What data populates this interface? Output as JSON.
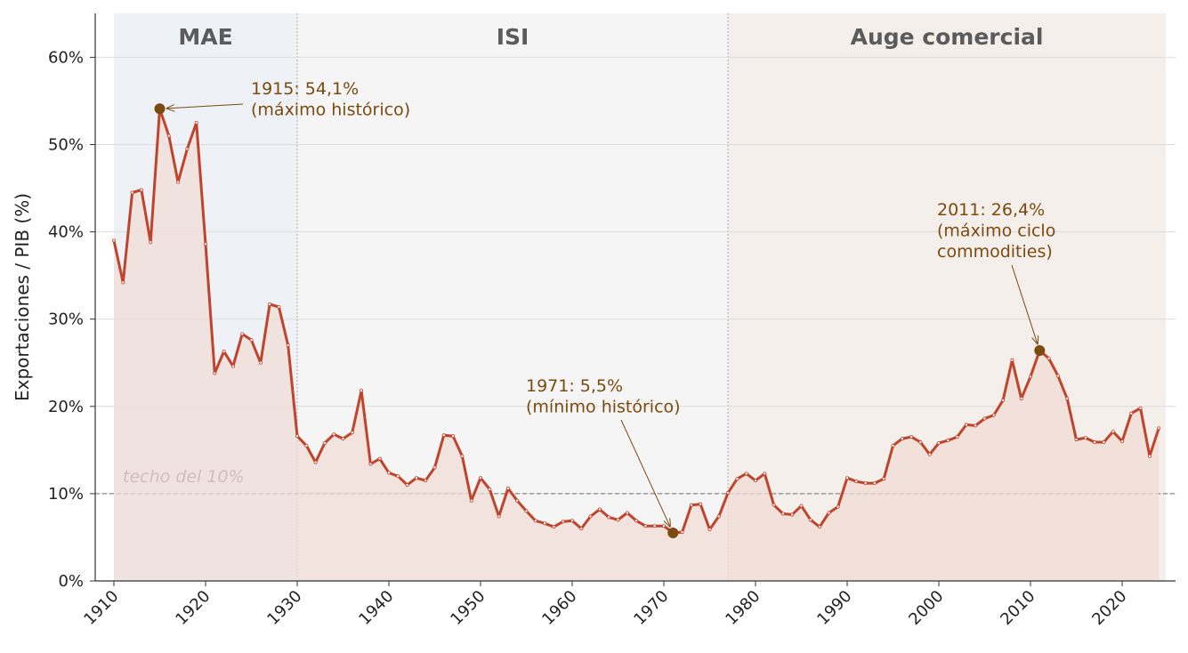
{
  "chart_data": {
    "type": "line",
    "title": "",
    "xlabel": "",
    "ylabel": "Exportaciones / PIB (%)",
    "xlim": [
      1908,
      2027
    ],
    "ylim": [
      0,
      65
    ],
    "grid": "horizontal",
    "x_ticks": [
      1910,
      1920,
      1930,
      1940,
      1950,
      1960,
      1970,
      1980,
      1990,
      2000,
      2010,
      2020
    ],
    "y_ticks": [
      {
        "value": 0,
        "label": "0%"
      },
      {
        "value": 10,
        "label": "10%"
      },
      {
        "value": 20,
        "label": "20%"
      },
      {
        "value": 30,
        "label": "30%"
      },
      {
        "value": 40,
        "label": "40%"
      },
      {
        "value": 50,
        "label": "50%"
      },
      {
        "value": 60,
        "label": "60%"
      }
    ],
    "periods": [
      {
        "name": "MAE",
        "start": 1910,
        "end": 1930,
        "color": "#eef2f7"
      },
      {
        "name": "ISI",
        "start": 1930,
        "end": 1977,
        "color": "#f5f5f5"
      },
      {
        "name": "Auge comercial",
        "start": 1977,
        "end": 2025,
        "color": "#f5efeb"
      }
    ],
    "reference_line": {
      "value": 10,
      "label": "techo del 10%"
    },
    "series": [
      {
        "color": "#c0442c",
        "fill": "#f0dcd5",
        "x": [
          1910,
          1911,
          1912,
          1913,
          1914,
          1915,
          1916,
          1917,
          1918,
          1919,
          1920,
          1921,
          1922,
          1923,
          1924,
          1925,
          1926,
          1927,
          1928,
          1929,
          1930,
          1931,
          1932,
          1933,
          1934,
          1935,
          1936,
          1937,
          1938,
          1939,
          1940,
          1941,
          1942,
          1943,
          1944,
          1945,
          1946,
          1947,
          1948,
          1949,
          1950,
          1951,
          1952,
          1953,
          1954,
          1955,
          1956,
          1957,
          1958,
          1959,
          1960,
          1961,
          1962,
          1963,
          1964,
          1965,
          1966,
          1967,
          1968,
          1969,
          1970,
          1971,
          1972,
          1973,
          1974,
          1975,
          1976,
          1977,
          1978,
          1979,
          1980,
          1981,
          1982,
          1983,
          1984,
          1985,
          1986,
          1987,
          1988,
          1989,
          1990,
          1991,
          1992,
          1993,
          1994,
          1995,
          1996,
          1997,
          1998,
          1999,
          2000,
          2001,
          2002,
          2003,
          2004,
          2005,
          2006,
          2007,
          2008,
          2009,
          2010,
          2011,
          2012,
          2013,
          2014,
          2015,
          2016,
          2017,
          2018,
          2019,
          2020,
          2021,
          2022,
          2023,
          2024
        ],
        "values": [
          39.0,
          34.2,
          44.5,
          44.8,
          38.8,
          54.1,
          51.0,
          45.7,
          49.5,
          52.5,
          38.6,
          23.8,
          26.3,
          24.6,
          28.3,
          27.6,
          25.0,
          31.7,
          31.4,
          27.0,
          16.6,
          15.5,
          13.6,
          15.8,
          16.8,
          16.3,
          17.0,
          21.8,
          13.4,
          14.0,
          12.4,
          12.0,
          11.0,
          11.8,
          11.5,
          13.0,
          16.7,
          16.6,
          14.3,
          9.2,
          11.8,
          10.5,
          7.4,
          10.6,
          9.2,
          8.0,
          6.9,
          6.6,
          6.2,
          6.8,
          6.9,
          6.0,
          7.4,
          8.2,
          7.3,
          7.0,
          7.8,
          6.9,
          6.3,
          6.3,
          6.3,
          5.5,
          5.6,
          8.7,
          8.8,
          5.9,
          7.4,
          10.1,
          11.7,
          12.3,
          11.5,
          12.3,
          8.7,
          7.7,
          7.6,
          8.6,
          7.0,
          6.2,
          7.8,
          8.5,
          11.8,
          11.4,
          11.2,
          11.2,
          11.7,
          15.5,
          16.3,
          16.5,
          15.9,
          14.5,
          15.8,
          16.1,
          16.5,
          17.9,
          17.8,
          18.6,
          19.0,
          20.7,
          25.3,
          20.9,
          23.4,
          26.4,
          25.5,
          23.5,
          20.9,
          16.2,
          16.4,
          15.9,
          15.9,
          17.1,
          16.0,
          19.2,
          19.8,
          14.3,
          17.5
        ]
      }
    ],
    "annotations": [
      {
        "x": 1915,
        "y": 54.1,
        "lines": [
          "1915: 54,1%",
          "(máximo histórico)"
        ]
      },
      {
        "x": 1971,
        "y": 5.5,
        "lines": [
          "1971: 5,5%",
          "(mínimo histórico)"
        ]
      },
      {
        "x": 2011,
        "y": 26.4,
        "lines": [
          "2011: 26,4%",
          "(máximo ciclo",
          "commodities)"
        ]
      }
    ]
  }
}
